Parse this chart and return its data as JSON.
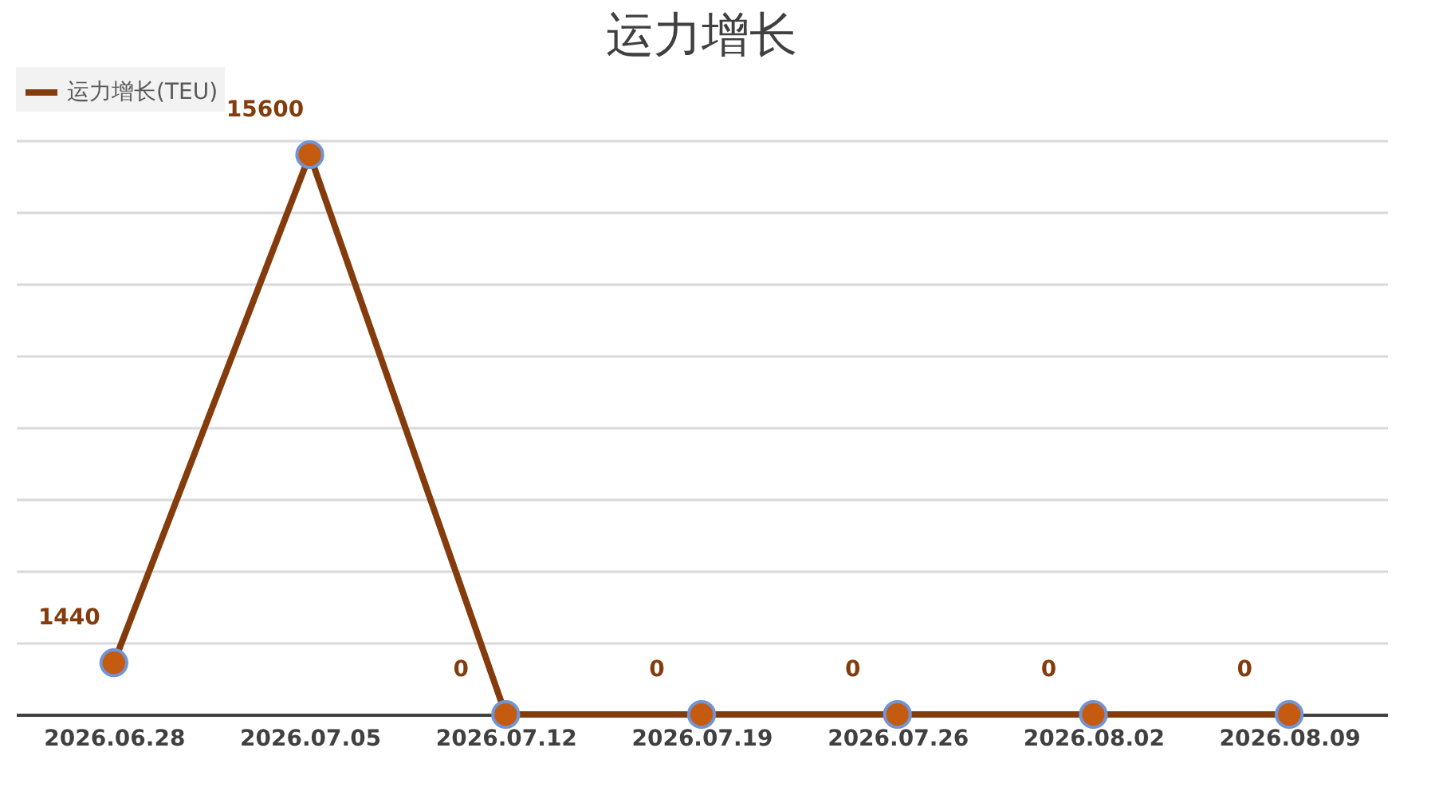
{
  "chart_data": {
    "type": "line",
    "title": "运力增长",
    "categories": [
      "2026.06.28",
      "2026.07.05",
      "2026.07.12",
      "2026.07.19",
      "2026.07.26",
      "2026.08.02",
      "2026.08.09"
    ],
    "series": [
      {
        "name": "运力增长(TEU)",
        "color": "#843c0c",
        "values": [
          1440,
          15600,
          0,
          0,
          0,
          0,
          0
        ]
      }
    ],
    "grid": "y",
    "legend": "top",
    "marker": "circle",
    "line_style": "solid",
    "data_labels": true,
    "tick_labels": "x"
  }
}
